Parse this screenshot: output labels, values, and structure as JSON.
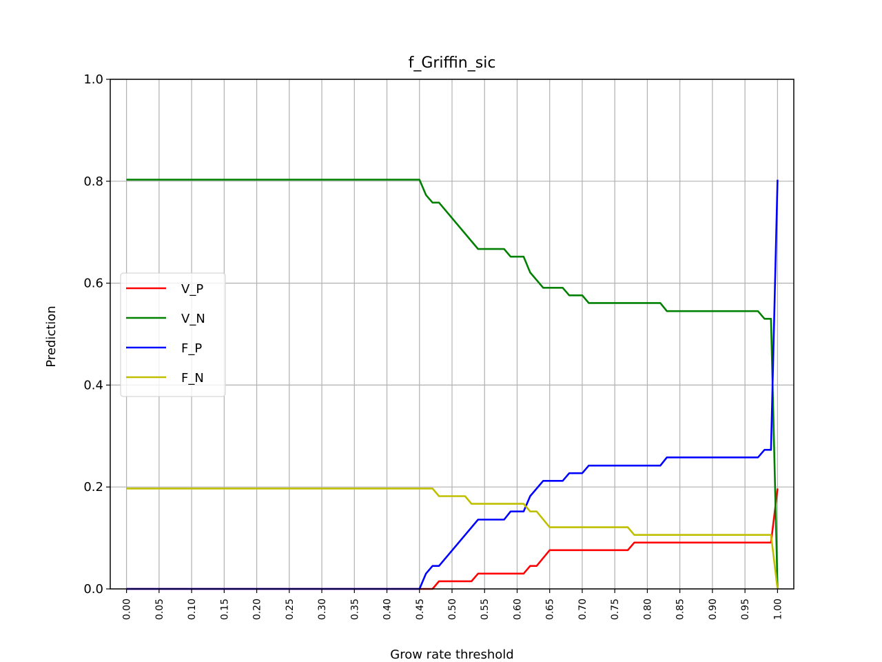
{
  "chart_data": {
    "type": "line",
    "title": "f_Griffin_sic",
    "xlabel": "Grow rate threshold",
    "ylabel": "Prediction",
    "xlim": [
      -0.025,
      1.025
    ],
    "ylim": [
      0.0,
      1.0
    ],
    "grid": true,
    "legend_position": "center-left",
    "xticks": [
      "0.00",
      "0.05",
      "0.10",
      "0.15",
      "0.20",
      "0.25",
      "0.30",
      "0.35",
      "0.40",
      "0.45",
      "0.50",
      "0.55",
      "0.60",
      "0.65",
      "0.70",
      "0.75",
      "0.80",
      "0.85",
      "0.90",
      "0.95",
      "1.00"
    ],
    "yticks": [
      "0.0",
      "0.2",
      "0.4",
      "0.6",
      "0.8",
      "1.0"
    ],
    "series": [
      {
        "name": "V_P",
        "color": "#ff0000",
        "points": [
          [
            0.0,
            0.0
          ],
          [
            0.47,
            0.0
          ],
          [
            0.48,
            0.015
          ],
          [
            0.53,
            0.015
          ],
          [
            0.54,
            0.03
          ],
          [
            0.61,
            0.03
          ],
          [
            0.62,
            0.045
          ],
          [
            0.63,
            0.045
          ],
          [
            0.65,
            0.076
          ],
          [
            0.77,
            0.076
          ],
          [
            0.78,
            0.091
          ],
          [
            0.99,
            0.091
          ],
          [
            1.0,
            0.197
          ]
        ]
      },
      {
        "name": "V_N",
        "color": "#008000",
        "points": [
          [
            0.0,
            0.803
          ],
          [
            0.45,
            0.803
          ],
          [
            0.46,
            0.773
          ],
          [
            0.47,
            0.758
          ],
          [
            0.48,
            0.758
          ],
          [
            0.54,
            0.667
          ],
          [
            0.58,
            0.667
          ],
          [
            0.59,
            0.652
          ],
          [
            0.61,
            0.652
          ],
          [
            0.62,
            0.621
          ],
          [
            0.64,
            0.591
          ],
          [
            0.67,
            0.591
          ],
          [
            0.68,
            0.576
          ],
          [
            0.7,
            0.576
          ],
          [
            0.71,
            0.561
          ],
          [
            0.82,
            0.561
          ],
          [
            0.83,
            0.545
          ],
          [
            0.97,
            0.545
          ],
          [
            0.98,
            0.53
          ],
          [
            0.99,
            0.53
          ],
          [
            1.0,
            0.0
          ]
        ]
      },
      {
        "name": "F_P",
        "color": "#0000ff",
        "points": [
          [
            0.0,
            0.0
          ],
          [
            0.45,
            0.0
          ],
          [
            0.46,
            0.03
          ],
          [
            0.47,
            0.045
          ],
          [
            0.48,
            0.045
          ],
          [
            0.54,
            0.136
          ],
          [
            0.58,
            0.136
          ],
          [
            0.59,
            0.152
          ],
          [
            0.61,
            0.152
          ],
          [
            0.62,
            0.182
          ],
          [
            0.64,
            0.212
          ],
          [
            0.67,
            0.212
          ],
          [
            0.68,
            0.227
          ],
          [
            0.7,
            0.227
          ],
          [
            0.71,
            0.242
          ],
          [
            0.82,
            0.242
          ],
          [
            0.83,
            0.258
          ],
          [
            0.97,
            0.258
          ],
          [
            0.98,
            0.273
          ],
          [
            0.99,
            0.273
          ],
          [
            1.0,
            0.803
          ]
        ]
      },
      {
        "name": "F_N",
        "color": "#bfbf00",
        "points": [
          [
            0.0,
            0.197
          ],
          [
            0.47,
            0.197
          ],
          [
            0.48,
            0.182
          ],
          [
            0.52,
            0.182
          ],
          [
            0.53,
            0.167
          ],
          [
            0.61,
            0.167
          ],
          [
            0.62,
            0.152
          ],
          [
            0.63,
            0.152
          ],
          [
            0.65,
            0.121
          ],
          [
            0.77,
            0.121
          ],
          [
            0.78,
            0.106
          ],
          [
            0.99,
            0.106
          ],
          [
            1.0,
            0.0
          ]
        ]
      }
    ]
  }
}
